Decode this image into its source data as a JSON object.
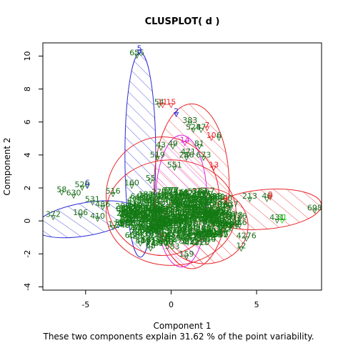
{
  "chart_data": {
    "type": "scatter",
    "title": "CLUSPLOT( d )",
    "xlabel": "Component 1",
    "ylabel": "Component 2",
    "caption": "These two components explain 31.62 % of the point variability.",
    "xlim": [
      -7.5,
      8.8
    ],
    "ylim": [
      -4.2,
      10.8
    ],
    "x_ticks": [
      -5,
      0,
      5
    ],
    "x_tick_labels": [
      "-5",
      "0",
      "5"
    ],
    "y_ticks": [
      -4,
      -2,
      0,
      2,
      4,
      6,
      8,
      10
    ],
    "y_tick_labels": [
      "-4",
      "-2",
      "0",
      "2",
      "4",
      "6",
      "8",
      "10"
    ],
    "grid": false,
    "colors": {
      "red": "#e8262a",
      "blue": "#2a2ad4",
      "magenta": "#e020e0",
      "darkgreen": "#1a6e1a",
      "green": "#22cc22",
      "dense": "#147a14"
    },
    "clusters": [
      {
        "id": "1",
        "cx": -5.0,
        "cy": 0.1,
        "rx": 3.0,
        "ry": 1.0,
        "angle": -10,
        "color": "#2a2ad4",
        "hatch": "diag"
      },
      {
        "id": "2",
        "cx": -1.8,
        "cy": 4.0,
        "rx": 0.9,
        "ry": 6.2,
        "angle": 0,
        "color": "#2a2ad4",
        "hatch": "diag"
      },
      {
        "id": "3",
        "cx": 1.2,
        "cy": 2.1,
        "rx": 2.2,
        "ry": 5.0,
        "angle": 0,
        "color": "#e8262a",
        "hatch": "diag"
      },
      {
        "id": "4",
        "cx": 5.5,
        "cy": 0.7,
        "rx": 3.3,
        "ry": 1.2,
        "angle": -5,
        "color": "#e8262a",
        "hatch": "diag"
      },
      {
        "id": "5",
        "cx": 2.0,
        "cy": -0.3,
        "rx": 2.5,
        "ry": 2.3,
        "angle": 0,
        "color": "#e8262a",
        "hatch": "diag"
      },
      {
        "id": "6",
        "cx": 0.6,
        "cy": 1.2,
        "rx": 1.5,
        "ry": 4.0,
        "angle": 0,
        "color": "#e020e0",
        "hatch": "diag"
      },
      {
        "id": "7",
        "cx": 0.0,
        "cy": 0.5,
        "rx": 3.8,
        "ry": 3.2,
        "angle": 0,
        "color": "#e8262a",
        "hatch": "none"
      },
      {
        "id": "8",
        "cx": -0.5,
        "cy": 1.5,
        "rx": 3.3,
        "ry": 3.6,
        "angle": 0,
        "color": "#e8262a",
        "hatch": "none"
      }
    ],
    "points": [
      {
        "label": "655",
        "x": -2.0,
        "y": 10.0,
        "color": "#1a6e1a"
      },
      {
        "label": "5",
        "x": -1.85,
        "y": 10.25,
        "color": "#2a2ad4"
      },
      {
        "label": "2",
        "x": 0.3,
        "y": 6.45,
        "color": "#2a2ad4"
      },
      {
        "label": "54",
        "x": -0.7,
        "y": 7.0,
        "color": "#1a6e1a"
      },
      {
        "label": "11",
        "x": -0.5,
        "y": 7.0,
        "color": "#e8262a"
      },
      {
        "label": "15",
        "x": 0.0,
        "y": 7.0,
        "color": "#e8262a"
      },
      {
        "label": "383",
        "x": 1.1,
        "y": 5.9,
        "color": "#1a6e1a"
      },
      {
        "label": "524",
        "x": 1.3,
        "y": 5.5,
        "color": "#1a6e1a"
      },
      {
        "label": "87",
        "x": 1.75,
        "y": 5.5,
        "color": "#1a6e1a"
      },
      {
        "label": "7",
        "x": 2.1,
        "y": 5.6,
        "color": "#e8262a"
      },
      {
        "label": "10",
        "x": 2.35,
        "y": 5.0,
        "color": "#e8262a"
      },
      {
        "label": "6",
        "x": 2.8,
        "y": 5.0,
        "color": "#1a6e1a"
      },
      {
        "label": "14",
        "x": 0.8,
        "y": 4.7,
        "color": "#e020e0"
      },
      {
        "label": "43",
        "x": -0.6,
        "y": 4.4,
        "color": "#1a6e1a"
      },
      {
        "label": "49",
        "x": 0.1,
        "y": 4.5,
        "color": "#1a6e1a"
      },
      {
        "label": "81",
        "x": 1.65,
        "y": 4.5,
        "color": "#1a6e1a"
      },
      {
        "label": "471",
        "x": 1.0,
        "y": 4.0,
        "color": "#1a6e1a"
      },
      {
        "label": "519",
        "x": -0.8,
        "y": 3.8,
        "color": "#1a6e1a"
      },
      {
        "label": "286",
        "x": 0.9,
        "y": 3.8,
        "color": "#1a6e1a"
      },
      {
        "label": "673",
        "x": 1.9,
        "y": 3.8,
        "color": "#1a6e1a"
      },
      {
        "label": "551",
        "x": 0.2,
        "y": 3.2,
        "color": "#1a6e1a"
      },
      {
        "label": "13",
        "x": 2.5,
        "y": 3.2,
        "color": "#e8262a"
      },
      {
        "label": "58",
        "x": -6.4,
        "y": 1.7,
        "color": "#1a6e1a"
      },
      {
        "label": "6",
        "x": -4.9,
        "y": 2.1,
        "color": "#2a2ad4"
      },
      {
        "label": "520",
        "x": -5.2,
        "y": 2.0,
        "color": "#1a6e1a"
      },
      {
        "label": "630",
        "x": -5.7,
        "y": 1.5,
        "color": "#1a6e1a"
      },
      {
        "label": "531",
        "x": -4.6,
        "y": 1.1,
        "color": "#1a6e1a"
      },
      {
        "label": "486",
        "x": -4.0,
        "y": 0.8,
        "color": "#1a6e1a"
      },
      {
        "label": "516",
        "x": -3.4,
        "y": 1.6,
        "color": "#1a6e1a"
      },
      {
        "label": "160",
        "x": -2.3,
        "y": 2.1,
        "color": "#1a6e1a"
      },
      {
        "label": "55",
        "x": -1.2,
        "y": 2.4,
        "color": "#1a6e1a"
      },
      {
        "label": "372",
        "x": -6.9,
        "y": 0.2,
        "color": "#1a6e1a"
      },
      {
        "label": "106",
        "x": -5.3,
        "y": 0.3,
        "color": "#1a6e1a"
      },
      {
        "label": "410",
        "x": -4.3,
        "y": 0.1,
        "color": "#1a6e1a"
      },
      {
        "label": "17",
        "x": -3.4,
        "y": -0.4,
        "color": "#1a6e1a"
      },
      {
        "label": "4",
        "x": 3.2,
        "y": 1.2,
        "color": "#e8262a"
      },
      {
        "label": "213",
        "x": 4.6,
        "y": 1.3,
        "color": "#1a6e1a"
      },
      {
        "label": "46",
        "x": 5.6,
        "y": 1.3,
        "color": "#1a6e1a"
      },
      {
        "label": "9",
        "x": 5.8,
        "y": 1.4,
        "color": "#e8262a"
      },
      {
        "label": "698",
        "x": 8.4,
        "y": 0.6,
        "color": "#1a6e1a"
      },
      {
        "label": "431",
        "x": 6.2,
        "y": 0.0,
        "color": "#1a6e1a"
      },
      {
        "label": "31",
        "x": 6.5,
        "y": 0.0,
        "color": "#22cc22"
      },
      {
        "label": "337",
        "x": 3.5,
        "y": 0.8,
        "color": "#1a6e1a"
      },
      {
        "label": "126",
        "x": 4.0,
        "y": 0.1,
        "color": "#1a6e1a"
      },
      {
        "label": "386",
        "x": 4.0,
        "y": -0.3,
        "color": "#1a6e1a"
      },
      {
        "label": "4276",
        "x": 4.4,
        "y": -1.1,
        "color": "#1a6e1a"
      },
      {
        "label": "12",
        "x": 4.1,
        "y": -1.7,
        "color": "#1a6e1a"
      },
      {
        "label": "68",
        "x": -1.2,
        "y": -1.7,
        "color": "#1a6e1a"
      },
      {
        "label": "159",
        "x": 0.9,
        "y": -2.2,
        "color": "#1a6e1a"
      },
      {
        "label": "56",
        "x": -1.8,
        "y": -1.4,
        "color": "#1a6e1a"
      }
    ]
  }
}
